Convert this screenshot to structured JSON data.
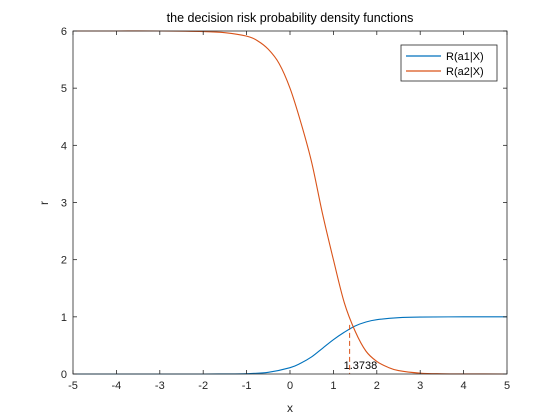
{
  "chart_data": {
    "type": "line",
    "title": "the decision risk probability density functions",
    "xlabel": "x",
    "ylabel": "r",
    "xlim": [
      -5,
      5
    ],
    "ylim": [
      0,
      6
    ],
    "xticks": [
      "-5",
      "-4",
      "-3",
      "-2",
      "-1",
      "0",
      "1",
      "2",
      "3",
      "4",
      "5"
    ],
    "yticks": [
      "0",
      "1",
      "2",
      "3",
      "4",
      "5",
      "6"
    ],
    "grid": false,
    "legend_position": "top-right",
    "series": [
      {
        "name": "R(a1|X)",
        "color": "#0072BD",
        "x": [
          -5,
          -4,
          -3,
          -2,
          -1.5,
          -1,
          -0.5,
          0,
          0.25,
          0.5,
          0.75,
          1,
          1.25,
          1.5,
          1.75,
          2,
          2.5,
          3,
          4,
          5
        ],
        "y": [
          0,
          0,
          0,
          0,
          0.001,
          0.006,
          0.03,
          0.11,
          0.19,
          0.3,
          0.45,
          0.6,
          0.73,
          0.84,
          0.91,
          0.95,
          0.985,
          0.996,
          1.0,
          1.0
        ]
      },
      {
        "name": "R(a2|X)",
        "color": "#D95319",
        "x": [
          -5,
          -4,
          -3,
          -2,
          -1.5,
          -1,
          -0.75,
          -0.5,
          -0.25,
          0,
          0.25,
          0.5,
          0.75,
          1,
          1.25,
          1.5,
          1.75,
          2,
          2.25,
          2.5,
          3,
          3.5,
          4,
          5
        ],
        "y": [
          6,
          6,
          6,
          5.99,
          5.97,
          5.91,
          5.83,
          5.68,
          5.43,
          5.0,
          4.4,
          3.7,
          2.8,
          2.0,
          1.25,
          0.75,
          0.4,
          0.22,
          0.12,
          0.06,
          0.015,
          0.004,
          0.001,
          0
        ]
      }
    ],
    "annotation": {
      "text": "1.3738",
      "x": 1.3738,
      "y": 0.86,
      "color": "#D95319"
    }
  }
}
